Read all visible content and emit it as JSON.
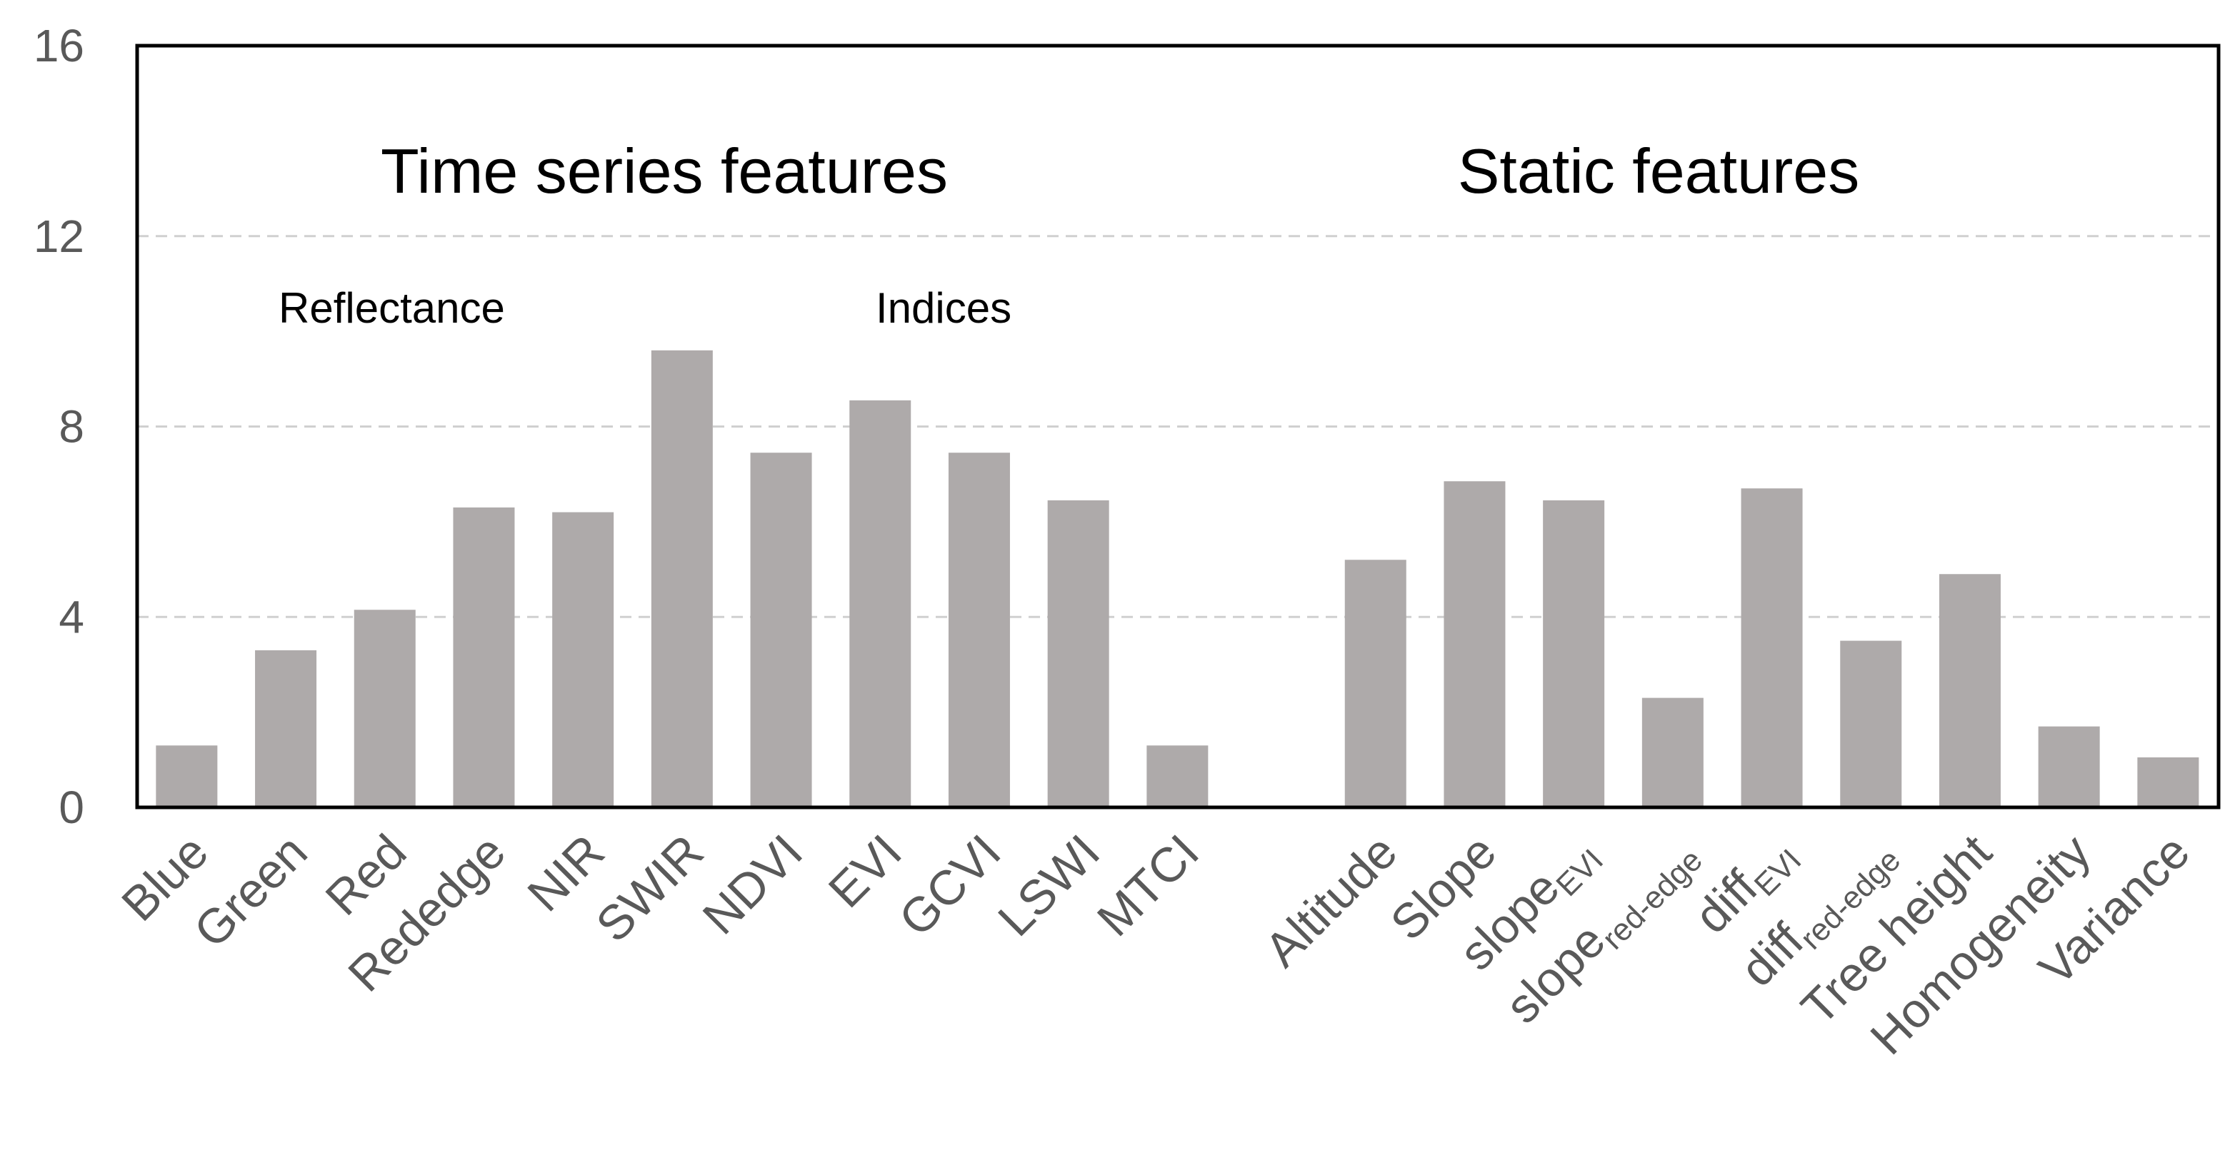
{
  "chart_data": {
    "type": "bar",
    "title": "",
    "xlabel": "",
    "ylabel": "",
    "ylim": [
      0,
      16
    ],
    "yticks": [
      0,
      4,
      8,
      12,
      16
    ],
    "grid": true,
    "bar_color": "#aeaaaa",
    "grid_color": "#d0d0d0",
    "annotations": {
      "time_series": "Time series features",
      "static": "Static features",
      "reflectance": "Reflectance",
      "indices": "Indices"
    },
    "categories": [
      {
        "label": "Blue",
        "sub": "",
        "value": 1.3
      },
      {
        "label": "Green",
        "sub": "",
        "value": 3.3
      },
      {
        "label": "Red",
        "sub": "",
        "value": 4.15
      },
      {
        "label": "Rededge",
        "sub": "",
        "value": 6.3
      },
      {
        "label": "NIR",
        "sub": "",
        "value": 6.2
      },
      {
        "label": "SWIR",
        "sub": "",
        "value": 9.6
      },
      {
        "label": "NDVI",
        "sub": "",
        "value": 7.45
      },
      {
        "label": "EVI",
        "sub": "",
        "value": 8.55
      },
      {
        "label": "GCVI",
        "sub": "",
        "value": 7.45
      },
      {
        "label": "LSWI",
        "sub": "",
        "value": 6.45
      },
      {
        "label": "MTCI",
        "sub": "",
        "value": 1.3
      },
      {
        "label": "Altitude",
        "sub": "",
        "value": 5.2
      },
      {
        "label": "Slope",
        "sub": "",
        "value": 6.85
      },
      {
        "label": "slope",
        "sub": "EVI",
        "value": 6.45
      },
      {
        "label": "slope",
        "sub": "red-edge",
        "value": 2.3
      },
      {
        "label": "diff",
        "sub": "EVI",
        "value": 6.7
      },
      {
        "label": "diff",
        "sub": "red-edge",
        "value": 3.5
      },
      {
        "label": "Tree height",
        "sub": "",
        "value": 4.9
      },
      {
        "label": "Homogeneity",
        "sub": "",
        "value": 1.7
      },
      {
        "label": "Variance",
        "sub": "",
        "value": 1.05
      }
    ]
  }
}
